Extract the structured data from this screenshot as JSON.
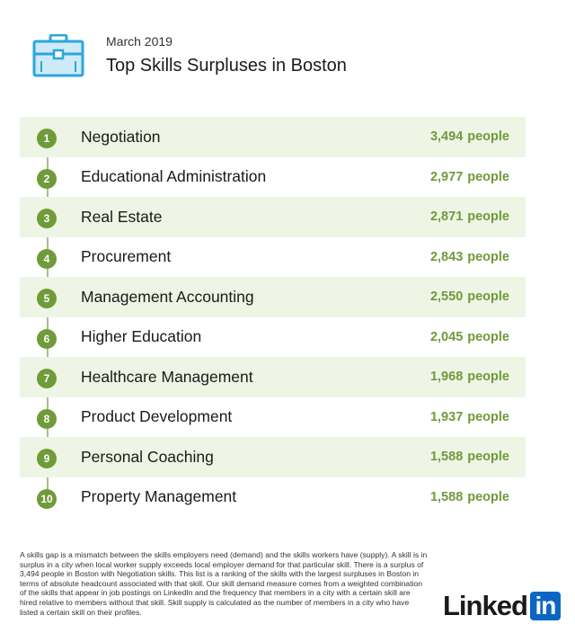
{
  "header": {
    "icon": "briefcase-icon",
    "date": "March 2019",
    "title": "Top Skills Surpluses in Boston"
  },
  "colors": {
    "accent_green": "#6f9b3a",
    "count_green": "#6e9a3c",
    "row_shade": "#eef5e4",
    "icon_blue": "#2aa7dc",
    "linkedin_blue": "#0a66c2"
  },
  "skills": [
    {
      "rank": "1",
      "name": "Negotiation",
      "count": "3,494",
      "unit": "people"
    },
    {
      "rank": "2",
      "name": "Educational Administration",
      "count": "2,977",
      "unit": "people"
    },
    {
      "rank": "3",
      "name": "Real Estate",
      "count": "2,871",
      "unit": "people"
    },
    {
      "rank": "4",
      "name": "Procurement",
      "count": "2,843",
      "unit": "people"
    },
    {
      "rank": "5",
      "name": "Management Accounting",
      "count": "2,550",
      "unit": "people"
    },
    {
      "rank": "6",
      "name": "Higher Education",
      "count": "2,045",
      "unit": "people"
    },
    {
      "rank": "7",
      "name": "Healthcare Management",
      "count": "1,968",
      "unit": "people"
    },
    {
      "rank": "8",
      "name": "Product Development",
      "count": "1,937",
      "unit": "people"
    },
    {
      "rank": "9",
      "name": "Personal Coaching",
      "count": "1,588",
      "unit": "people"
    },
    {
      "rank": "10",
      "name": "Property Management",
      "count": "1,588",
      "unit": "people"
    }
  ],
  "footnote": "A skills gap is a mismatch between the skills employers need (demand) and the skills workers have (supply). A skill is in surplus in a city when local worker supply exceeds local employer demand for that particular skill. There is a surplus of 3,494 people in Boston with Negotiation skills. This list is a ranking of the skills with the largest surpluses in Boston in terms of absolute headcount associated with that skill. Our skill demand measure comes from a weighted combination of the skills that appear in job postings on LinkedIn and the frequency that members in a city with a certain skill are hired relative to members without that skill. Skill supply is calculated as the number of members in a city who have listed a certain skill on their profiles.",
  "logo": {
    "word": "Linked",
    "in": "in"
  }
}
